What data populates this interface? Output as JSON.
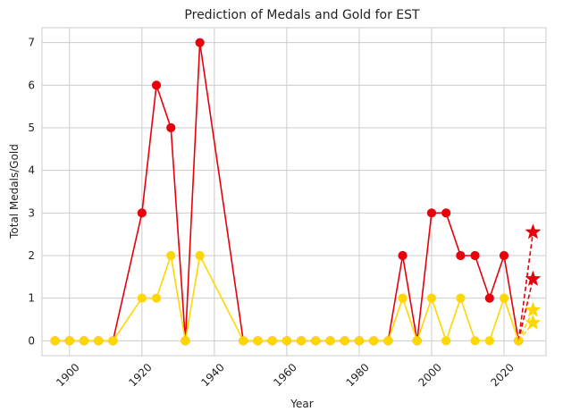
{
  "chart_data": {
    "type": "line",
    "title": "Prediction of Medals and Gold for EST",
    "xlabel": "Year",
    "ylabel": "Total Medals/Gold",
    "xlim": [
      1892.4,
      2031.6
    ],
    "ylim": [
      -0.35,
      7.35
    ],
    "xticks": [
      1900,
      1920,
      1940,
      1960,
      1980,
      2000,
      2020
    ],
    "yticks": [
      0,
      1,
      2,
      3,
      4,
      5,
      6,
      7
    ],
    "grid": true,
    "series": [
      {
        "color": "#e8000b",
        "marker": "circle",
        "x": [
          1896,
          1900,
          1904,
          1908,
          1912,
          1920,
          1924,
          1928,
          1932,
          1936,
          1948,
          1952,
          1956,
          1960,
          1964,
          1968,
          1972,
          1976,
          1980,
          1984,
          1988,
          1992,
          1996,
          2000,
          2004,
          2008,
          2012,
          2016,
          2020,
          2024
        ],
        "y": [
          0,
          0,
          0,
          0,
          0,
          3,
          6,
          5,
          0,
          7,
          0,
          0,
          0,
          0,
          0,
          0,
          0,
          0,
          0,
          0,
          0,
          2,
          0,
          3,
          3,
          2,
          2,
          1,
          2,
          0
        ]
      },
      {
        "color": "#ffd700",
        "marker": "circle",
        "x": [
          1896,
          1900,
          1904,
          1908,
          1912,
          1920,
          1924,
          1928,
          1932,
          1936,
          1948,
          1952,
          1956,
          1960,
          1964,
          1968,
          1972,
          1976,
          1980,
          1984,
          1988,
          1992,
          1996,
          2000,
          2004,
          2008,
          2012,
          2016,
          2020,
          2024
        ],
        "y": [
          0,
          0,
          0,
          0,
          0,
          1,
          1,
          2,
          0,
          2,
          0,
          0,
          0,
          0,
          0,
          0,
          0,
          0,
          0,
          0,
          0,
          1,
          0,
          1,
          0,
          1,
          0,
          0,
          1,
          0
        ]
      }
    ],
    "predictions": [
      {
        "color": "#e8000b",
        "from": [
          2024,
          0
        ],
        "x": 2028,
        "y": [
          2.55,
          1.45
        ]
      },
      {
        "color": "#ffd700",
        "from": [
          2024,
          0
        ],
        "x": 2028,
        "y": [
          0.72,
          0.42
        ]
      }
    ]
  }
}
